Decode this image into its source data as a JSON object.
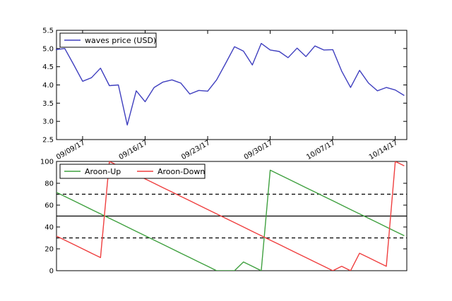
{
  "chart_data": [
    {
      "type": "line",
      "title": "",
      "xlabel": "",
      "ylabel": "",
      "x": [
        "09/06/17",
        "09/07/17",
        "09/08/17",
        "09/09/17",
        "09/10/17",
        "09/11/17",
        "09/12/17",
        "09/13/17",
        "09/14/17",
        "09/15/17",
        "09/16/17",
        "09/17/17",
        "09/18/17",
        "09/19/17",
        "09/20/17",
        "09/21/17",
        "09/22/17",
        "09/23/17",
        "09/24/17",
        "09/25/17",
        "09/26/17",
        "09/27/17",
        "09/28/17",
        "09/29/17",
        "09/30/17",
        "10/01/17",
        "10/02/17",
        "10/03/17",
        "10/04/17",
        "10/05/17",
        "10/06/17",
        "10/07/17",
        "10/08/17",
        "10/09/17",
        "10/10/17",
        "10/11/17",
        "10/12/17",
        "10/13/17",
        "10/14/17",
        "10/15/17"
      ],
      "xtick_labels": [
        "09/09/17",
        "09/16/17",
        "09/23/17",
        "09/30/17",
        "10/07/17",
        "10/14/17"
      ],
      "ylim": [
        2.5,
        5.5
      ],
      "yticks": [
        "2.5",
        "3.0",
        "3.5",
        "4.0",
        "4.5",
        "5.0",
        "5.5"
      ],
      "legend_position": "upper-left",
      "grid": false,
      "series": [
        {
          "name": "waves price (USD)",
          "color": "#3f3fbf",
          "values": [
            4.97,
            5.0,
            4.56,
            4.1,
            4.2,
            4.46,
            3.98,
            4.0,
            2.9,
            3.84,
            3.54,
            3.93,
            4.08,
            4.14,
            4.05,
            3.75,
            3.85,
            3.83,
            4.14,
            4.59,
            5.05,
            4.93,
            4.55,
            5.14,
            4.96,
            4.92,
            4.75,
            5.01,
            4.78,
            5.07,
            4.96,
            4.97,
            4.38,
            3.93,
            4.4,
            4.05,
            3.84,
            3.93,
            3.86,
            3.71
          ]
        }
      ]
    },
    {
      "type": "line",
      "title": "",
      "xlabel": "",
      "ylabel": "",
      "x": [
        "09/06/17",
        "09/07/17",
        "09/08/17",
        "09/09/17",
        "09/10/17",
        "09/11/17",
        "09/12/17",
        "09/13/17",
        "09/14/17",
        "09/15/17",
        "09/16/17",
        "09/17/17",
        "09/18/17",
        "09/19/17",
        "09/20/17",
        "09/21/17",
        "09/22/17",
        "09/23/17",
        "09/24/17",
        "09/25/17",
        "09/26/17",
        "09/27/17",
        "09/28/17",
        "09/29/17",
        "09/30/17",
        "10/01/17",
        "10/02/17",
        "10/03/17",
        "10/04/17",
        "10/05/17",
        "10/06/17",
        "10/07/17",
        "10/08/17",
        "10/09/17",
        "10/10/17",
        "10/11/17",
        "10/12/17",
        "10/13/17",
        "10/14/17",
        "10/15/17"
      ],
      "ylim": [
        0,
        100
      ],
      "yticks": [
        "0",
        "20",
        "40",
        "60",
        "80",
        "100"
      ],
      "legend_position": "upper-left",
      "grid": false,
      "reference_lines": [
        {
          "y": 70,
          "style": "dashed"
        },
        {
          "y": 50,
          "style": "solid"
        },
        {
          "y": 30,
          "style": "dashed"
        }
      ],
      "series": [
        {
          "name": "Aroon-Up",
          "color": "#3fa03f",
          "values": [
            72,
            68,
            64,
            60,
            56,
            52,
            48,
            44,
            40,
            36,
            32,
            28,
            24,
            20,
            16,
            12,
            8,
            4,
            0,
            0,
            0,
            8,
            4,
            0,
            92,
            88,
            84,
            80,
            76,
            72,
            68,
            64,
            60,
            56,
            52,
            48,
            44,
            40,
            36,
            32
          ]
        },
        {
          "name": "Aroon-Down",
          "color": "#ef3f3f",
          "values": [
            32,
            28,
            24,
            20,
            16,
            12,
            100,
            96,
            92,
            88,
            84,
            80,
            76,
            72,
            68,
            64,
            60,
            56,
            52,
            48,
            44,
            40,
            36,
            32,
            28,
            24,
            20,
            16,
            12,
            8,
            4,
            0,
            4,
            0,
            16,
            12,
            8,
            4,
            100,
            96
          ]
        }
      ]
    }
  ]
}
